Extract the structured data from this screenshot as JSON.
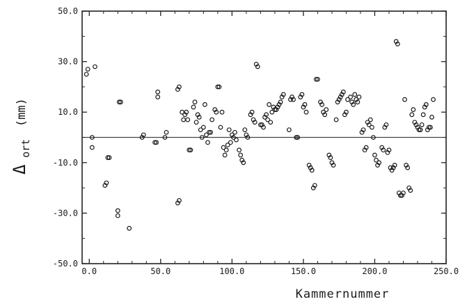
{
  "chart_data": {
    "type": "scatter",
    "title": "",
    "xlabel": "Kammernummer",
    "ylabel": {
      "symbol": "Δ",
      "subscript": "ort",
      "unit": "(mm)"
    },
    "xlim": [
      -5,
      250
    ],
    "ylim": [
      -50,
      50
    ],
    "xticks": [
      0,
      50,
      100,
      150,
      200,
      250
    ],
    "yticks": [
      -50,
      -30,
      -10,
      10,
      30,
      50
    ],
    "xtick_labels": [
      "0.0",
      "50.0",
      "100.0",
      "150.0",
      "200.0",
      "250.0"
    ],
    "ytick_labels": [
      "-50.0",
      "-30.0",
      "-10.0",
      "10.0",
      "30.0",
      "50.0"
    ],
    "reference_line_y": 0,
    "grid": false,
    "legend": "none",
    "marker": "open-circle",
    "series": [
      {
        "points": [
          [
            -2,
            25
          ],
          [
            -1,
            27
          ],
          [
            2,
            0
          ],
          [
            2,
            -4
          ],
          [
            4,
            28
          ],
          [
            11,
            -19
          ],
          [
            12,
            -18
          ],
          [
            13,
            -8
          ],
          [
            14,
            -8
          ],
          [
            20,
            -29
          ],
          [
            20,
            -31
          ],
          [
            21,
            14
          ],
          [
            22,
            14
          ],
          [
            28,
            -36
          ],
          [
            37,
            0
          ],
          [
            38,
            1
          ],
          [
            46,
            -2
          ],
          [
            47,
            -2
          ],
          [
            48,
            16
          ],
          [
            48,
            18
          ],
          [
            53,
            0
          ],
          [
            54,
            2
          ],
          [
            62,
            19
          ],
          [
            63,
            20
          ],
          [
            62,
            -26
          ],
          [
            63,
            -25
          ],
          [
            65,
            10
          ],
          [
            66,
            7
          ],
          [
            67,
            9
          ],
          [
            68,
            10
          ],
          [
            69,
            7
          ],
          [
            70,
            -5
          ],
          [
            71,
            -5
          ],
          [
            73,
            12
          ],
          [
            74,
            14
          ],
          [
            75,
            6
          ],
          [
            76,
            9
          ],
          [
            77,
            8
          ],
          [
            78,
            3
          ],
          [
            79,
            0
          ],
          [
            80,
            4
          ],
          [
            81,
            13
          ],
          [
            82,
            1
          ],
          [
            83,
            -2
          ],
          [
            84,
            2
          ],
          [
            85,
            2
          ],
          [
            86,
            7
          ],
          [
            88,
            11
          ],
          [
            89,
            10
          ],
          [
            90,
            20
          ],
          [
            91,
            20
          ],
          [
            92,
            4
          ],
          [
            93,
            10
          ],
          [
            94,
            -4
          ],
          [
            95,
            -7
          ],
          [
            96,
            -5
          ],
          [
            97,
            -3
          ],
          [
            98,
            3
          ],
          [
            99,
            -2
          ],
          [
            100,
            1
          ],
          [
            101,
            0
          ],
          [
            102,
            2
          ],
          [
            103,
            -1
          ],
          [
            105,
            -5
          ],
          [
            106,
            -7
          ],
          [
            107,
            -9
          ],
          [
            108,
            -10
          ],
          [
            109,
            3
          ],
          [
            110,
            1
          ],
          [
            111,
            0
          ],
          [
            113,
            9
          ],
          [
            114,
            10
          ],
          [
            115,
            7
          ],
          [
            116,
            6
          ],
          [
            117,
            29
          ],
          [
            118,
            28
          ],
          [
            120,
            5
          ],
          [
            121,
            5
          ],
          [
            122,
            4
          ],
          [
            123,
            8
          ],
          [
            124,
            9
          ],
          [
            125,
            7
          ],
          [
            126,
            13
          ],
          [
            127,
            6
          ],
          [
            128,
            10
          ],
          [
            129,
            12
          ],
          [
            130,
            11
          ],
          [
            131,
            11
          ],
          [
            132,
            12
          ],
          [
            133,
            13
          ],
          [
            134,
            14
          ],
          [
            135,
            16
          ],
          [
            136,
            17
          ],
          [
            140,
            3
          ],
          [
            141,
            15
          ],
          [
            142,
            16
          ],
          [
            143,
            15
          ],
          [
            145,
            0
          ],
          [
            146,
            0
          ],
          [
            148,
            16
          ],
          [
            149,
            17
          ],
          [
            150,
            12
          ],
          [
            151,
            13
          ],
          [
            152,
            10
          ],
          [
            154,
            -11
          ],
          [
            155,
            -12
          ],
          [
            156,
            -13
          ],
          [
            157,
            -20
          ],
          [
            158,
            -19
          ],
          [
            159,
            23
          ],
          [
            160,
            23
          ],
          [
            162,
            14
          ],
          [
            163,
            13
          ],
          [
            164,
            10
          ],
          [
            165,
            9
          ],
          [
            166,
            11
          ],
          [
            168,
            -7
          ],
          [
            169,
            -8
          ],
          [
            170,
            -10
          ],
          [
            171,
            -11
          ],
          [
            173,
            7
          ],
          [
            174,
            14
          ],
          [
            175,
            15
          ],
          [
            176,
            16
          ],
          [
            177,
            17
          ],
          [
            178,
            18
          ],
          [
            179,
            9
          ],
          [
            180,
            10
          ],
          [
            181,
            15
          ],
          [
            183,
            16
          ],
          [
            184,
            14
          ],
          [
            185,
            13
          ],
          [
            186,
            17
          ],
          [
            187,
            15
          ],
          [
            188,
            14
          ],
          [
            189,
            16
          ],
          [
            191,
            2
          ],
          [
            192,
            3
          ],
          [
            193,
            -5
          ],
          [
            194,
            -4
          ],
          [
            195,
            6
          ],
          [
            196,
            5
          ],
          [
            197,
            7
          ],
          [
            198,
            4
          ],
          [
            199,
            0
          ],
          [
            200,
            -7
          ],
          [
            201,
            -9
          ],
          [
            202,
            -11
          ],
          [
            203,
            -10
          ],
          [
            205,
            -4
          ],
          [
            206,
            -5
          ],
          [
            207,
            4
          ],
          [
            208,
            5
          ],
          [
            209,
            -6
          ],
          [
            210,
            -5
          ],
          [
            211,
            -12
          ],
          [
            212,
            -13
          ],
          [
            213,
            -12
          ],
          [
            214,
            -11
          ],
          [
            215,
            38
          ],
          [
            216,
            37
          ],
          [
            217,
            -22
          ],
          [
            218,
            -23
          ],
          [
            219,
            -23
          ],
          [
            220,
            -22
          ],
          [
            221,
            15
          ],
          [
            222,
            -11
          ],
          [
            223,
            -12
          ],
          [
            224,
            -20
          ],
          [
            225,
            -21
          ],
          [
            226,
            9
          ],
          [
            227,
            11
          ],
          [
            228,
            6
          ],
          [
            229,
            5
          ],
          [
            230,
            4
          ],
          [
            231,
            3
          ],
          [
            232,
            3
          ],
          [
            233,
            5
          ],
          [
            234,
            9
          ],
          [
            235,
            12
          ],
          [
            236,
            13
          ],
          [
            237,
            3
          ],
          [
            238,
            4
          ],
          [
            239,
            4
          ],
          [
            240,
            8
          ],
          [
            241,
            15
          ]
        ]
      }
    ]
  }
}
